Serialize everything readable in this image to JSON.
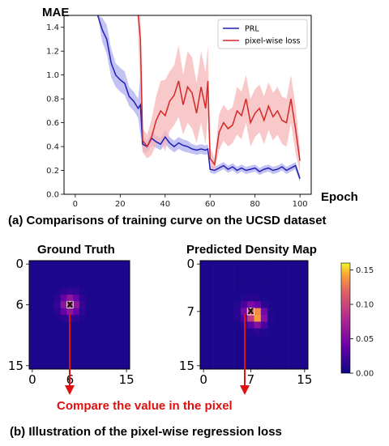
{
  "chart_data": [
    {
      "type": "line",
      "xlabel": "Epoch",
      "ylabel": "MAE",
      "xlim": [
        -5,
        105
      ],
      "ylim": [
        0.0,
        1.5
      ],
      "xticks": [
        "0",
        "20",
        "40",
        "60",
        "80",
        "100"
      ],
      "yticks": [
        "0.0",
        "0.2",
        "0.4",
        "0.6",
        "0.8",
        "1.0",
        "1.2",
        "1.4"
      ],
      "legend_position": "top-right",
      "series": [
        {
          "name": "PRL",
          "color": "#1f1fb4",
          "band_color": "#b4b4f0",
          "x": [
            10,
            12,
            14,
            16,
            18,
            20,
            22,
            24,
            26,
            28,
            29,
            30,
            32,
            34,
            36,
            38,
            40,
            42,
            44,
            46,
            48,
            50,
            52,
            54,
            56,
            58,
            59,
            60,
            62,
            64,
            66,
            68,
            70,
            72,
            74,
            76,
            78,
            80,
            82,
            84,
            86,
            88,
            90,
            92,
            94,
            96,
            98,
            100
          ],
          "values": [
            1.6,
            1.38,
            1.3,
            1.1,
            1.0,
            0.96,
            0.93,
            0.82,
            0.78,
            0.72,
            0.75,
            0.42,
            0.4,
            0.47,
            0.44,
            0.42,
            0.48,
            0.43,
            0.4,
            0.43,
            0.41,
            0.4,
            0.38,
            0.37,
            0.38,
            0.37,
            0.38,
            0.21,
            0.2,
            0.22,
            0.24,
            0.21,
            0.23,
            0.2,
            0.22,
            0.2,
            0.21,
            0.22,
            0.19,
            0.21,
            0.22,
            0.2,
            0.21,
            0.23,
            0.2,
            0.22,
            0.24,
            0.13
          ],
          "band_width": [
            0.1,
            0.1,
            0.12,
            0.12,
            0.1,
            0.1,
            0.1,
            0.08,
            0.08,
            0.08,
            0.25,
            0.06,
            0.05,
            0.06,
            0.05,
            0.05,
            0.06,
            0.05,
            0.05,
            0.05,
            0.05,
            0.05,
            0.04,
            0.04,
            0.04,
            0.04,
            0.04,
            0.03,
            0.03,
            0.03,
            0.03,
            0.03,
            0.03,
            0.03,
            0.03,
            0.03,
            0.03,
            0.03,
            0.03,
            0.03,
            0.03,
            0.03,
            0.03,
            0.03,
            0.03,
            0.03,
            0.03,
            0.03
          ]
        },
        {
          "name": "pixel-wise loss",
          "color": "#d62728",
          "band_color": "#f7b6b6",
          "x": [
            28,
            29,
            30,
            32,
            34,
            36,
            38,
            40,
            42,
            44,
            46,
            48,
            50,
            52,
            54,
            56,
            58,
            59,
            60,
            62,
            64,
            66,
            68,
            70,
            72,
            74,
            76,
            78,
            80,
            82,
            84,
            86,
            88,
            90,
            92,
            94,
            96,
            98,
            100
          ],
          "values": [
            1.6,
            1.3,
            0.45,
            0.4,
            0.48,
            0.62,
            0.7,
            0.66,
            0.78,
            0.83,
            0.95,
            0.75,
            0.9,
            0.85,
            0.68,
            0.9,
            0.72,
            0.95,
            0.3,
            0.25,
            0.52,
            0.6,
            0.55,
            0.58,
            0.7,
            0.66,
            0.8,
            0.6,
            0.68,
            0.72,
            0.62,
            0.74,
            0.65,
            0.7,
            0.62,
            0.6,
            0.8,
            0.55,
            0.28
          ],
          "band_width": [
            0.3,
            0.4,
            0.1,
            0.1,
            0.15,
            0.2,
            0.25,
            0.3,
            0.25,
            0.25,
            0.3,
            0.25,
            0.3,
            0.3,
            0.25,
            0.3,
            0.3,
            0.3,
            0.1,
            0.05,
            0.15,
            0.15,
            0.15,
            0.15,
            0.2,
            0.2,
            0.2,
            0.2,
            0.2,
            0.2,
            0.2,
            0.2,
            0.2,
            0.2,
            0.2,
            0.2,
            0.2,
            0.2,
            0.1
          ]
        }
      ],
      "caption": "(a) Comparisons of training curve on the UCSD dataset"
    },
    {
      "type": "heatmap",
      "title": "Ground Truth",
      "xticks": [
        "0",
        "6",
        "15"
      ],
      "yticks": [
        "0",
        "6",
        "15"
      ],
      "marker_cell": [
        6,
        6
      ],
      "marker_label": "x"
    },
    {
      "type": "heatmap",
      "title": "Predicted Density Map",
      "xticks": [
        "0",
        "7",
        "15"
      ],
      "yticks": [
        "0",
        "7",
        "15"
      ],
      "marker_cell": [
        7,
        7
      ],
      "marker_label": "x",
      "colorbar": {
        "range": [
          0.0,
          0.16
        ],
        "ticks": [
          "0.00",
          "0.05",
          "0.10",
          "0.15"
        ]
      }
    }
  ],
  "annotation": "Compare the value in the pixel",
  "caption_b": "(b) Illustration of the pixel-wise regression loss",
  "colors": {
    "accent_red": "#e01010",
    "heat_background": "#2a0a8c"
  }
}
